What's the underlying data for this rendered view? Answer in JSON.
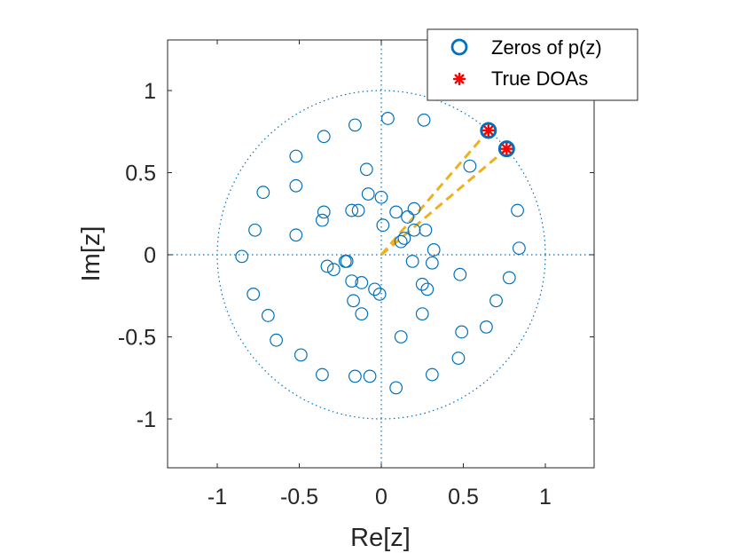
{
  "chart_data": {
    "type": "scatter",
    "title": "",
    "xlabel": "Re[z]",
    "ylabel": "Im[z]",
    "xlim": [
      -1.3,
      1.3
    ],
    "ylim": [
      -1.3,
      1.3
    ],
    "xticks": [
      -1,
      -0.5,
      0,
      0.5,
      1
    ],
    "xtick_labels": [
      "-1",
      "-0.5",
      "0",
      "0.5",
      "1"
    ],
    "yticks": [
      1,
      0.5,
      0,
      -0.5,
      -1
    ],
    "ytick_labels": [
      "1",
      "0.5",
      "0",
      "-0.5",
      "-1"
    ],
    "grid": false,
    "unit_circle": true,
    "axes_crosshair": true,
    "legend": {
      "position": "top-right",
      "entries": [
        "Zeros of p(z)",
        "True DOAs"
      ]
    },
    "colors": {
      "zeros": "#0072BD",
      "doa": "#FF0000",
      "lines": "#EDB120",
      "unit_circle": "#0072BD"
    },
    "series": [
      {
        "name": "Zeros of p(z)",
        "marker": "circle",
        "points": [
          [
            0.04,
            0.83
          ],
          [
            0.26,
            0.82
          ],
          [
            -0.16,
            0.79
          ],
          [
            -0.35,
            0.72
          ],
          [
            -0.52,
            0.6
          ],
          [
            -0.09,
            0.52
          ],
          [
            0.54,
            0.54
          ],
          [
            -0.52,
            0.42
          ],
          [
            -0.72,
            0.38
          ],
          [
            -0.08,
            0.37
          ],
          [
            0.0,
            0.35
          ],
          [
            0.83,
            0.27
          ],
          [
            -0.35,
            0.26
          ],
          [
            -0.18,
            0.27
          ],
          [
            -0.14,
            0.27
          ],
          [
            0.09,
            0.26
          ],
          [
            0.2,
            0.28
          ],
          [
            0.16,
            0.23
          ],
          [
            -0.36,
            0.21
          ],
          [
            0.01,
            0.18
          ],
          [
            0.2,
            0.15
          ],
          [
            0.27,
            0.15
          ],
          [
            -0.52,
            0.12
          ],
          [
            -0.77,
            0.15
          ],
          [
            0.12,
            0.08
          ],
          [
            0.14,
            0.1
          ],
          [
            0.84,
            0.04
          ],
          [
            0.32,
            0.03
          ],
          [
            -0.85,
            -0.01
          ],
          [
            -0.21,
            -0.04
          ],
          [
            -0.22,
            -0.04
          ],
          [
            0.19,
            -0.04
          ],
          [
            0.31,
            -0.05
          ],
          [
            -0.33,
            -0.07
          ],
          [
            -0.29,
            -0.09
          ],
          [
            -0.18,
            -0.16
          ],
          [
            0.25,
            -0.18
          ],
          [
            -0.12,
            -0.17
          ],
          [
            -0.04,
            -0.21
          ],
          [
            0.28,
            -0.21
          ],
          [
            0.78,
            -0.14
          ],
          [
            0.48,
            -0.12
          ],
          [
            -0.78,
            -0.24
          ],
          [
            -0.01,
            -0.24
          ],
          [
            -0.17,
            -0.28
          ],
          [
            0.7,
            -0.28
          ],
          [
            -0.12,
            -0.36
          ],
          [
            0.25,
            -0.36
          ],
          [
            -0.69,
            -0.37
          ],
          [
            0.64,
            -0.44
          ],
          [
            0.49,
            -0.47
          ],
          [
            -0.64,
            -0.52
          ],
          [
            0.12,
            -0.5
          ],
          [
            -0.49,
            -0.61
          ],
          [
            0.47,
            -0.63
          ],
          [
            -0.36,
            -0.73
          ],
          [
            -0.16,
            -0.74
          ],
          [
            -0.07,
            -0.74
          ],
          [
            0.31,
            -0.73
          ],
          [
            0.09,
            -0.81
          ]
        ]
      },
      {
        "name": "True DOAs",
        "marker": "asterisk",
        "points": [
          [
            0.653,
            0.757
          ],
          [
            0.764,
            0.645
          ]
        ]
      },
      {
        "name": "DOA zeros (highlighted)",
        "marker": "circle-bold",
        "points": [
          [
            0.653,
            0.757
          ],
          [
            0.764,
            0.645
          ]
        ]
      }
    ],
    "annotations": {
      "dashed_lines_from_origin_to": [
        [
          0.653,
          0.757
        ],
        [
          0.764,
          0.645
        ]
      ]
    }
  }
}
